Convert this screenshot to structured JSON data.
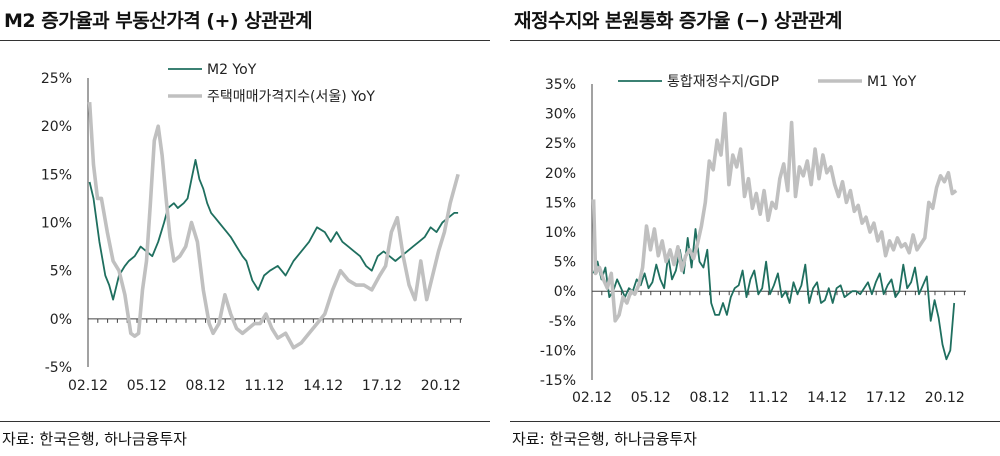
{
  "chart_data": [
    {
      "type": "line",
      "title": "M2 증가율과 부동산가격 (+) 상관관계",
      "source": "자료: 한국은행, 하나금융투자",
      "x_tick_labels": [
        "02.12",
        "05.12",
        "08.12",
        "11.12",
        "14.12",
        "17.12",
        "20.12"
      ],
      "x_ticks": [
        2002.917,
        2005.917,
        2008.917,
        2011.917,
        2014.917,
        2017.917,
        2020.917
      ],
      "xlim": [
        2002.917,
        2022.0
      ],
      "y_tick_labels": [
        "25%",
        "20%",
        "15%",
        "10%",
        "5%",
        "0%",
        "-5%"
      ],
      "y_ticks": [
        25,
        20,
        15,
        10,
        5,
        0,
        -5
      ],
      "ylim": [
        -5,
        25
      ],
      "legend_position": "top",
      "series": [
        {
          "name": "M2 YoY",
          "color": "#1f6f5f",
          "x": [
            2003.0,
            2003.2,
            2003.5,
            2003.8,
            2004.0,
            2004.2,
            2004.5,
            2004.8,
            2005.0,
            2005.3,
            2005.6,
            2005.9,
            2006.2,
            2006.5,
            2006.8,
            2007.0,
            2007.3,
            2007.5,
            2007.8,
            2008.0,
            2008.2,
            2008.4,
            2008.6,
            2008.8,
            2009.0,
            2009.2,
            2009.4,
            2009.6,
            2009.8,
            2010.0,
            2010.2,
            2010.5,
            2010.8,
            2011.0,
            2011.3,
            2011.6,
            2011.9,
            2012.2,
            2012.6,
            2013.0,
            2013.4,
            2013.8,
            2014.2,
            2014.6,
            2015.0,
            2015.3,
            2015.6,
            2015.9,
            2016.2,
            2016.5,
            2016.8,
            2017.1,
            2017.4,
            2017.7,
            2018.0,
            2018.3,
            2018.6,
            2018.9,
            2019.2,
            2019.5,
            2019.8,
            2020.1,
            2020.4,
            2020.7,
            2021.0,
            2021.3,
            2021.6,
            2021.8
          ],
          "values": [
            14.2,
            12.5,
            8.0,
            4.5,
            3.5,
            2.0,
            4.5,
            5.5,
            6.0,
            6.5,
            7.5,
            7.0,
            6.5,
            8.0,
            10.0,
            11.5,
            12.0,
            11.5,
            12.0,
            12.5,
            14.5,
            16.5,
            14.5,
            13.5,
            12.0,
            11.0,
            10.5,
            10.0,
            9.5,
            9.0,
            8.5,
            7.5,
            6.5,
            6.0,
            4.0,
            3.0,
            4.5,
            5.0,
            5.5,
            4.5,
            6.0,
            7.0,
            8.0,
            9.5,
            9.0,
            8.0,
            9.0,
            8.0,
            7.5,
            7.0,
            6.5,
            5.5,
            5.0,
            6.5,
            7.0,
            6.5,
            6.0,
            6.5,
            7.0,
            7.5,
            8.0,
            8.5,
            9.5,
            9.0,
            10.0,
            10.5,
            11.0,
            11.0
          ]
        },
        {
          "name": "주택매매가격지수(서울) YoY",
          "color": "#c0c0c0",
          "x": [
            2003.0,
            2003.2,
            2003.4,
            2003.6,
            2003.9,
            2004.2,
            2004.5,
            2004.8,
            2005.1,
            2005.3,
            2005.5,
            2005.7,
            2005.9,
            2006.1,
            2006.3,
            2006.5,
            2006.7,
            2006.9,
            2007.1,
            2007.3,
            2007.6,
            2007.9,
            2008.2,
            2008.5,
            2008.8,
            2009.1,
            2009.3,
            2009.6,
            2009.9,
            2010.2,
            2010.5,
            2010.8,
            2011.1,
            2011.4,
            2011.7,
            2012.0,
            2012.3,
            2012.6,
            2013.0,
            2013.4,
            2013.8,
            2014.2,
            2014.6,
            2015.0,
            2015.4,
            2015.8,
            2016.2,
            2016.6,
            2017.0,
            2017.4,
            2017.8,
            2018.1,
            2018.4,
            2018.7,
            2019.0,
            2019.3,
            2019.6,
            2019.9,
            2020.2,
            2020.5,
            2020.8,
            2021.1,
            2021.4,
            2021.8
          ],
          "values": [
            22.5,
            16.0,
            12.5,
            12.5,
            9.0,
            6.0,
            5.0,
            2.5,
            -1.5,
            -1.8,
            -1.5,
            3.0,
            6.0,
            12.0,
            18.5,
            20.0,
            17.0,
            12.5,
            8.5,
            6.0,
            6.5,
            7.5,
            10.0,
            8.0,
            3.0,
            -0.5,
            -1.5,
            -0.5,
            2.5,
            0.5,
            -1.0,
            -1.5,
            -1.0,
            -0.5,
            -0.5,
            0.5,
            -1.0,
            -2.0,
            -1.5,
            -3.0,
            -2.5,
            -1.5,
            -0.5,
            0.5,
            3.0,
            5.0,
            4.0,
            3.5,
            3.5,
            3.0,
            4.5,
            5.5,
            9.0,
            10.5,
            6.5,
            3.5,
            2.0,
            6.0,
            2.0,
            4.5,
            7.0,
            9.0,
            12.0,
            15.0
          ]
        }
      ]
    },
    {
      "type": "line",
      "title": "재정수지와 본원통화 증가율 (−) 상관관계",
      "source": "자료: 한국은행, 하나금융투자",
      "x_tick_labels": [
        "02.12",
        "05.12",
        "08.12",
        "11.12",
        "14.12",
        "17.12",
        "20.12"
      ],
      "x_ticks": [
        2002.917,
        2005.917,
        2008.917,
        2011.917,
        2014.917,
        2017.917,
        2020.917
      ],
      "xlim": [
        2002.917,
        2022.0
      ],
      "y_tick_labels": [
        "35%",
        "30%",
        "25%",
        "20%",
        "15%",
        "10%",
        "5%",
        "0%",
        "-5%",
        "-10%",
        "-15%"
      ],
      "y_ticks": [
        35,
        30,
        25,
        20,
        15,
        10,
        5,
        0,
        -5,
        -10,
        -15
      ],
      "ylim": [
        -15,
        35
      ],
      "legend_position": "top",
      "series": [
        {
          "name": "통합재정수지/GDP",
          "color": "#1f6f5f",
          "x": [
            2003.0,
            2003.2,
            2003.4,
            2003.6,
            2003.8,
            2004.0,
            2004.2,
            2004.4,
            2004.6,
            2004.8,
            2005.0,
            2005.2,
            2005.4,
            2005.6,
            2005.8,
            2006.0,
            2006.2,
            2006.4,
            2006.6,
            2006.8,
            2007.0,
            2007.2,
            2007.4,
            2007.6,
            2007.8,
            2008.0,
            2008.2,
            2008.4,
            2008.6,
            2008.8,
            2009.0,
            2009.2,
            2009.4,
            2009.6,
            2009.8,
            2010.0,
            2010.2,
            2010.4,
            2010.6,
            2010.8,
            2011.0,
            2011.2,
            2011.4,
            2011.6,
            2011.8,
            2012.0,
            2012.2,
            2012.4,
            2012.6,
            2012.8,
            2013.0,
            2013.2,
            2013.4,
            2013.6,
            2013.8,
            2014.0,
            2014.2,
            2014.4,
            2014.6,
            2014.8,
            2015.0,
            2015.2,
            2015.4,
            2015.6,
            2015.8,
            2016.0,
            2016.2,
            2016.4,
            2016.6,
            2016.8,
            2017.0,
            2017.2,
            2017.4,
            2017.6,
            2017.8,
            2018.0,
            2018.2,
            2018.4,
            2018.6,
            2018.8,
            2019.0,
            2019.2,
            2019.4,
            2019.6,
            2019.8,
            2020.0,
            2020.2,
            2020.4,
            2020.6,
            2020.8,
            2021.0,
            2021.2,
            2021.4
          ],
          "values": [
            3.0,
            5.0,
            2.0,
            4.0,
            -1.0,
            0.0,
            2.0,
            0.5,
            -1.0,
            0.5,
            0.0,
            2.0,
            1.0,
            3.0,
            0.5,
            1.5,
            4.5,
            2.0,
            0.5,
            6.0,
            2.0,
            3.5,
            7.0,
            3.0,
            9.0,
            4.0,
            10.5,
            5.0,
            4.0,
            7.0,
            -2.0,
            -4.0,
            -4.0,
            -2.0,
            -4.0,
            -1.0,
            0.5,
            1.0,
            3.5,
            -1.0,
            2.0,
            3.5,
            -0.5,
            0.5,
            5.0,
            -0.5,
            1.0,
            3.0,
            -1.0,
            0.0,
            -2.0,
            1.5,
            -0.5,
            1.0,
            4.5,
            -2.0,
            0.5,
            1.5,
            -2.0,
            -1.5,
            0.5,
            -2.0,
            0.5,
            1.0,
            -1.0,
            -0.5,
            0.0,
            0.0,
            -0.5,
            0.5,
            1.5,
            -0.5,
            1.5,
            3.0,
            -0.5,
            1.0,
            2.0,
            -1.0,
            0.0,
            4.5,
            0.5,
            1.5,
            4.0,
            -0.5,
            1.0,
            2.5,
            -5.0,
            -1.5,
            -4.5,
            -9.0,
            -11.5,
            -10.0,
            -2.0
          ]
        },
        {
          "name": "M1 YoY",
          "color": "#c0c0c0",
          "x": [
            2003.0,
            2003.1,
            2003.3,
            2003.5,
            2003.7,
            2003.9,
            2004.1,
            2004.3,
            2004.5,
            2004.7,
            2004.9,
            2005.1,
            2005.3,
            2005.5,
            2005.7,
            2005.9,
            2006.1,
            2006.3,
            2006.5,
            2006.7,
            2006.9,
            2007.1,
            2007.3,
            2007.5,
            2007.7,
            2007.9,
            2008.1,
            2008.3,
            2008.5,
            2008.7,
            2008.9,
            2009.1,
            2009.3,
            2009.5,
            2009.7,
            2009.9,
            2010.1,
            2010.3,
            2010.5,
            2010.7,
            2010.9,
            2011.1,
            2011.3,
            2011.5,
            2011.7,
            2011.9,
            2012.1,
            2012.3,
            2012.5,
            2012.7,
            2012.9,
            2013.1,
            2013.3,
            2013.5,
            2013.7,
            2013.9,
            2014.1,
            2014.3,
            2014.5,
            2014.7,
            2014.9,
            2015.1,
            2015.3,
            2015.5,
            2015.7,
            2015.9,
            2016.1,
            2016.3,
            2016.5,
            2016.7,
            2016.9,
            2017.1,
            2017.3,
            2017.5,
            2017.7,
            2017.9,
            2018.1,
            2018.3,
            2018.5,
            2018.7,
            2018.9,
            2019.1,
            2019.3,
            2019.5,
            2019.7,
            2019.9,
            2020.1,
            2020.3,
            2020.5,
            2020.7,
            2020.9,
            2021.1,
            2021.3,
            2021.5
          ],
          "values": [
            15.5,
            3.0,
            4.0,
            2.0,
            0.5,
            3.0,
            -5.0,
            -4.0,
            -1.0,
            -2.0,
            0.0,
            -0.5,
            1.0,
            4.0,
            11.0,
            7.0,
            10.5,
            6.0,
            8.5,
            5.0,
            7.0,
            4.5,
            7.5,
            3.5,
            6.0,
            7.0,
            5.5,
            8.0,
            11.0,
            15.0,
            22.0,
            20.5,
            25.5,
            23.0,
            30.0,
            18.0,
            23.0,
            21.0,
            24.0,
            16.0,
            19.0,
            14.0,
            16.5,
            13.0,
            17.0,
            12.0,
            15.0,
            14.0,
            19.0,
            21.5,
            17.0,
            28.5,
            16.0,
            21.0,
            19.5,
            22.0,
            18.0,
            24.0,
            19.0,
            23.0,
            20.0,
            21.0,
            18.0,
            16.0,
            18.5,
            15.0,
            17.0,
            13.5,
            14.5,
            11.5,
            12.5,
            10.0,
            11.5,
            8.5,
            10.0,
            6.0,
            8.5,
            7.0,
            9.0,
            7.5,
            8.0,
            6.5,
            9.5,
            7.0,
            8.0,
            9.0,
            15.0,
            14.0,
            17.5,
            19.5,
            18.5,
            20.0,
            16.5,
            17.0
          ]
        }
      ]
    }
  ]
}
